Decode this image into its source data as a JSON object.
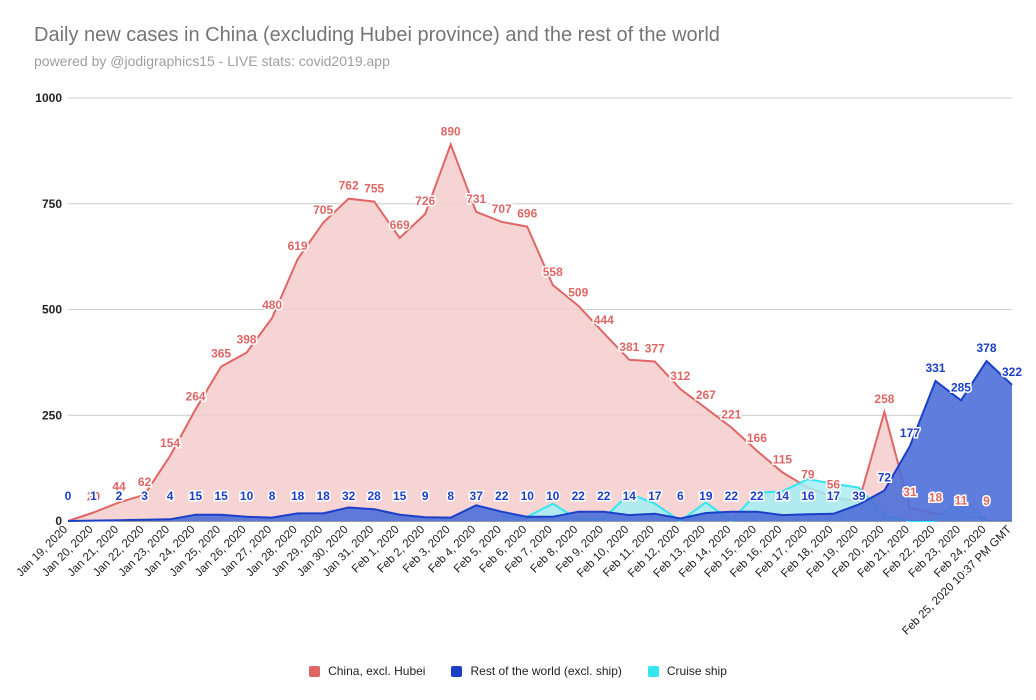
{
  "chart_data": {
    "type": "area",
    "title": "Daily new cases in China (excluding Hubei province) and the rest of the world",
    "subtitle": "powered by @jodigraphics15 - LIVE stats: covid2019.app",
    "categories": [
      "Jan 19, 2020",
      "Jan 20, 2020",
      "Jan 21, 2020",
      "Jan 22, 2020",
      "Jan 23, 2020",
      "Jan 24, 2020",
      "Jan 25, 2020",
      "Jan 26, 2020",
      "Jan 27, 2020",
      "Jan 28, 2020",
      "Jan 29, 2020",
      "Jan 30, 2020",
      "Jan 31, 2020",
      "Feb 1, 2020",
      "Feb 2, 2020",
      "Feb 3, 2020",
      "Feb 4, 2020",
      "Feb 5, 2020",
      "Feb 6, 2020",
      "Feb 7, 2020",
      "Feb 8, 2020",
      "Feb 9, 2020",
      "Feb 10, 2020",
      "Feb 11, 2020",
      "Feb 12, 2020",
      "Feb 13, 2020",
      "Feb 14, 2020",
      "Feb 15, 2020",
      "Feb 16, 2020",
      "Feb 17, 2020",
      "Feb 18, 2020",
      "Feb 19, 2020",
      "Feb 20, 2020",
      "Feb 21, 2020",
      "Feb 22, 2020",
      "Feb 23, 2020",
      "Feb 24, 2020",
      "Feb 25, 2020 10:37 PM GMT"
    ],
    "series": [
      {
        "name": "China, excl. Hubei",
        "color": "#e06666",
        "fill": "#f4cccc",
        "values": [
          0,
          20,
          44,
          62,
          154,
          264,
          365,
          398,
          480,
          619,
          705,
          762,
          755,
          669,
          726,
          890,
          731,
          707,
          696,
          558,
          509,
          444,
          381,
          377,
          312,
          267,
          221,
          166,
          115,
          79,
          56,
          46,
          258,
          31,
          18,
          11,
          9,
          null
        ],
        "labels": [
          null,
          20,
          44,
          62,
          154,
          264,
          365,
          398,
          480,
          619,
          705,
          762,
          755,
          669,
          726,
          890,
          731,
          707,
          696,
          558,
          509,
          444,
          381,
          377,
          312,
          267,
          221,
          166,
          115,
          79,
          56,
          null,
          258,
          31,
          18,
          11,
          9,
          null
        ]
      },
      {
        "name": "Rest of the world (excl. ship)",
        "color": "#1c3fc8",
        "fill": "#4e6fd8",
        "values": [
          0,
          1,
          2,
          3,
          4,
          15,
          15,
          10,
          8,
          18,
          18,
          32,
          28,
          15,
          9,
          8,
          37,
          22,
          10,
          10,
          22,
          22,
          14,
          17,
          6,
          19,
          22,
          22,
          14,
          16,
          17,
          39,
          72,
          177,
          331,
          285,
          378,
          322
        ],
        "labels": [
          0,
          1,
          2,
          3,
          4,
          15,
          15,
          10,
          8,
          18,
          18,
          32,
          28,
          15,
          9,
          8,
          37,
          22,
          10,
          10,
          22,
          22,
          14,
          17,
          6,
          19,
          22,
          22,
          14,
          16,
          17,
          39,
          72,
          177,
          331,
          285,
          378,
          322
        ]
      },
      {
        "name": "Cruise ship",
        "color": "#33e6f0",
        "fill": "#a6eef3",
        "values": [
          null,
          null,
          null,
          null,
          null,
          null,
          null,
          null,
          null,
          null,
          null,
          null,
          null,
          null,
          null,
          null,
          null,
          10,
          10,
          41,
          3,
          6,
          65,
          41,
          0,
          44,
          0,
          67,
          70,
          99,
          88,
          79,
          13,
          0,
          0,
          57,
          0,
          null
        ]
      }
    ],
    "ylim": [
      0,
      1000
    ],
    "yticks": [
      0,
      250,
      500,
      750,
      1000
    ],
    "grid": true,
    "legend_position": "bottom"
  }
}
